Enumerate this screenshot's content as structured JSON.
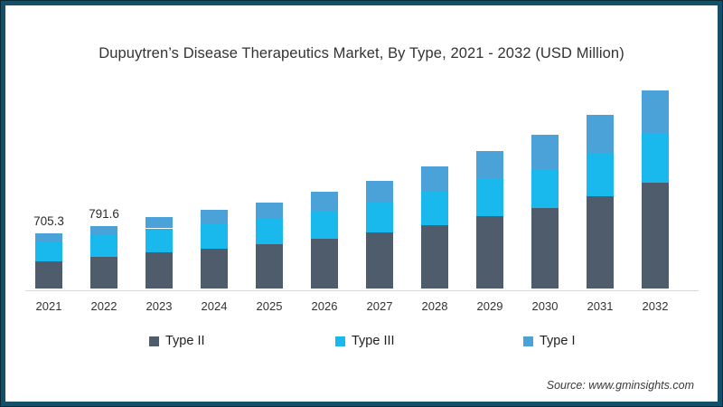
{
  "title": "Dupuytren’s Disease Therapeutics Market, By Type, 2021 - 2032 (USD Million)",
  "source": "Source: www.gminsights.com",
  "colors": {
    "frame_border": "#15506b",
    "type_ii": "#4e5c6b",
    "type_iii": "#1ab9ed",
    "type_i": "#4aa2d8",
    "axis_line": "#d9d9d9"
  },
  "chart_data": {
    "type": "bar",
    "stacked": true,
    "title": "Dupuytren’s Disease Therapeutics Market, By Type, 2021 - 2032 (USD Million)",
    "units": "USD Million",
    "categories": [
      "2021",
      "2022",
      "2023",
      "2024",
      "2025",
      "2026",
      "2027",
      "2028",
      "2029",
      "2030",
      "2031",
      "2032"
    ],
    "series": [
      {
        "name": "Type II",
        "color": "#4e5c6b",
        "values": [
          343,
          400,
          460,
          508,
          562,
          640,
          715,
          808,
          920,
          1028,
          1175,
          1348
        ]
      },
      {
        "name": "Type III",
        "color": "#1ab9ed",
        "values": [
          243,
          280,
          308,
          322,
          330,
          348,
          382,
          430,
          474,
          500,
          558,
          640
        ]
      },
      {
        "name": "Type I",
        "color": "#4aa2d8",
        "values": [
          119.3,
          111.6,
          144,
          178,
          206,
          252,
          278,
          324,
          366,
          432,
          489,
          545
        ]
      }
    ],
    "totals": [
      705.3,
      791.6,
      912,
      1008,
      1098,
      1240,
      1375,
      1562,
      1760,
      1960,
      2222,
      2533
    ],
    "data_labels": {
      "2021": "705.3",
      "2022": "791.6"
    },
    "xlabel": "",
    "ylabel": "",
    "ylim": [
      0,
      2600
    ],
    "grid": false,
    "y_axis_visible": false,
    "legend_position": "bottom"
  }
}
